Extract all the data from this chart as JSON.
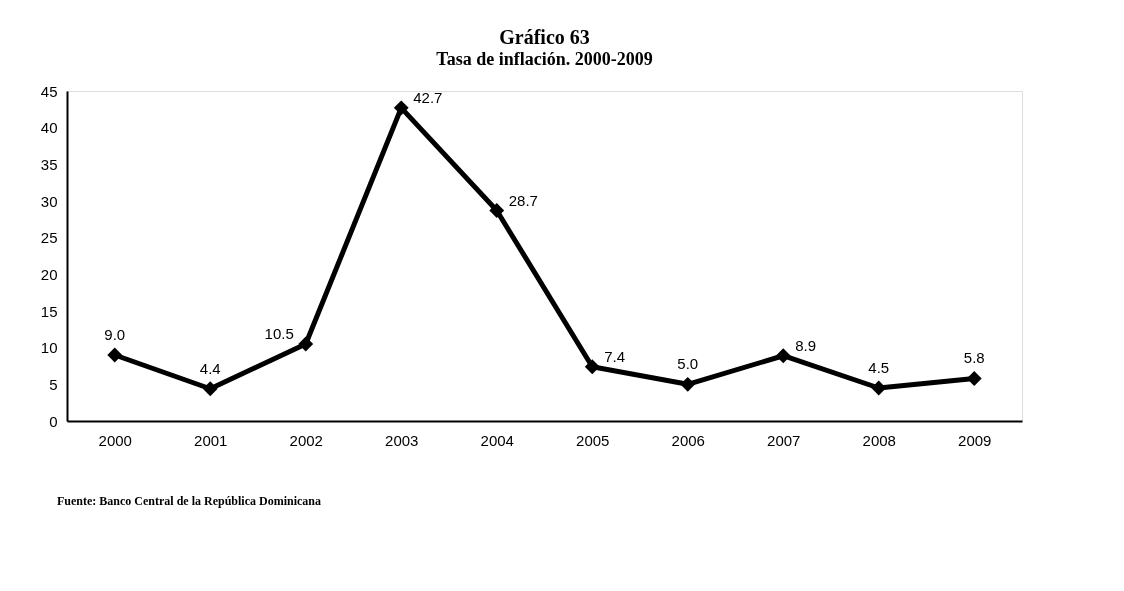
{
  "chart_data": {
    "type": "line",
    "title": "Gráfico 63",
    "subtitle": "Tasa de inflación. 2000-2009",
    "categories": [
      "2000",
      "2001",
      "2002",
      "2003",
      "2004",
      "2005",
      "2006",
      "2007",
      "2008",
      "2009"
    ],
    "series": [
      {
        "color": "#000000",
        "values": [
          9.0,
          4.4,
          10.5,
          42.7,
          28.7,
          7.4,
          5.0,
          8.9,
          4.5,
          5.8
        ]
      }
    ],
    "ylim": [
      0,
      45
    ],
    "yticks": [
      0,
      5,
      10,
      15,
      20,
      25,
      30,
      35,
      40,
      45
    ],
    "grid": false,
    "legend": false,
    "marker": "diamond",
    "line_style": "solid",
    "value_labels": [
      "9.0",
      "4.4",
      "10.5",
      "42.7",
      "28.7",
      "7.4",
      "5.0",
      "8.9",
      "4.5",
      "5.8"
    ],
    "annotations": [
      "Fuente: Banco Central de la República Dominicana"
    ]
  }
}
